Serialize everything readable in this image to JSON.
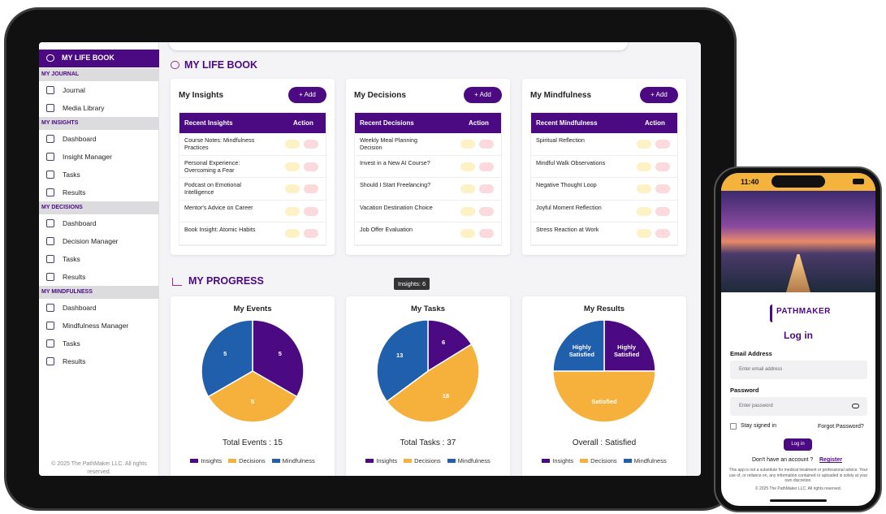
{
  "sidebar": {
    "brand": "MY LIFE BOOK",
    "sections": [
      {
        "title": "MY JOURNAL",
        "items": [
          "Journal",
          "Media Library"
        ]
      },
      {
        "title": "MY INSIGHTS",
        "items": [
          "Dashboard",
          "Insight Manager",
          "Tasks",
          "Results"
        ]
      },
      {
        "title": "MY DECISIONS",
        "items": [
          "Dashboard",
          "Decision Manager",
          "Tasks",
          "Results"
        ]
      },
      {
        "title": "MY MINDFULNESS",
        "items": [
          "Dashboard",
          "Mindfulness Manager",
          "Tasks",
          "Results"
        ]
      }
    ],
    "footer": "© 2025 The PathMaker LLC. All rights reserved."
  },
  "page_title": "MY LIFE BOOK",
  "panels": [
    {
      "title": "My Insights",
      "button": "+ Add",
      "columns": [
        "Recent Insights",
        "Action"
      ],
      "rows": [
        "Course Notes: Mindfulness Practices",
        "Personal Experience: Overcoming a Fear",
        "Podcast on Emotional Intelligence",
        "Mentor's Advice on Career",
        "Book Insight: Atomic Habits"
      ]
    },
    {
      "title": "My Decisions",
      "button": "+ Add",
      "columns": [
        "Recent Decisions",
        "Action"
      ],
      "rows": [
        "Weekly Meal Planning Decision",
        "Invest in a New AI Course?",
        "Should I Start Freelancing?",
        "Vacation Destination Choice",
        "Job Offer Evaluation"
      ]
    },
    {
      "title": "My Mindfulness",
      "button": "+ Add",
      "columns": [
        "Recent Mindfulness",
        "Action"
      ],
      "rows": [
        "Spiritual Reflection",
        "Mindful Walk Observations",
        "Negative Thought Loop",
        "Joyful Moment Reflection",
        "Stress Reaction at Work"
      ]
    }
  ],
  "progress": {
    "title": "MY PROGRESS",
    "tooltip": "Insights: 6"
  },
  "chart_data": [
    {
      "type": "pie",
      "title": "My Events",
      "categories": [
        "Insights",
        "Decisions",
        "Mindfulness"
      ],
      "colors": [
        "#4b0a82",
        "#f6b13d",
        "#1f5fab"
      ],
      "values": [
        5,
        5,
        5
      ],
      "summary": "Total Events : 15"
    },
    {
      "type": "pie",
      "title": "My Tasks",
      "categories": [
        "Insights",
        "Decisions",
        "Mindfulness"
      ],
      "colors": [
        "#4b0a82",
        "#f6b13d",
        "#1f5fab"
      ],
      "values": [
        6,
        18,
        13
      ],
      "summary": "Total Tasks : 37"
    },
    {
      "type": "pie",
      "title": "My Results",
      "categories": [
        "Insights",
        "Decisions",
        "Mindfulness"
      ],
      "colors": [
        "#4b0a82",
        "#f6b13d",
        "#1f5fab"
      ],
      "values": [
        25,
        50,
        25
      ],
      "value_labels": [
        "Highly Satisfied",
        "Satisfied",
        "Highly Satisfied"
      ],
      "summary": "Overall : Satisfied"
    }
  ],
  "phone": {
    "time": "11:40",
    "logo": "PATHMAKER",
    "heading": "Log in",
    "email_label": "Email Address",
    "email_placeholder": "Enter email address",
    "password_label": "Password",
    "password_placeholder": "Enter password",
    "remember": "Stay signed in",
    "forgot": "Forgot Password?",
    "submit": "Log in",
    "no_account": "Don't have an account ?",
    "register": "Register",
    "disclaimer": "This app is not a substitute for medical treatment or professional advice. Your use of, or reliance on, any information contained or uploaded is solely at your own discretion.",
    "copyright": "© 2025 The PathMaker LLC. All rights reserved."
  }
}
